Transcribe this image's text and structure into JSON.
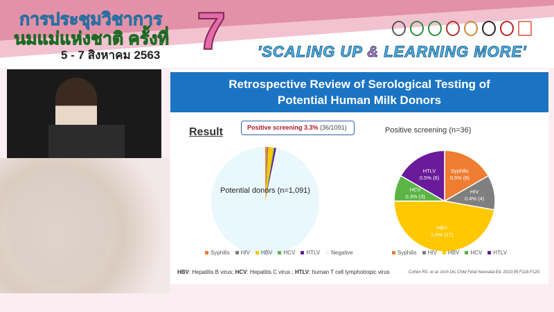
{
  "banner": {
    "title_line1": "การประชุมวิชาการ",
    "title_line2": "นมแม่แห่งชาติ ครั้งที่",
    "dates": "5 - 7 สิงหาคม 2563",
    "number": "7",
    "slogan_a": "'SCALING UP ",
    "slogan_amp": "&",
    "slogan_b": " LEARNING MORE'"
  },
  "slide": {
    "title_line1": "Retrospective Review of Serological Testing of",
    "title_line2": "Potential Human Milk Donors",
    "result_heading": "Result",
    "callout_bold": "Positive screening 3.3%",
    "callout_rest": " (36/1091)",
    "footnote_parts": [
      "HBV",
      ": Hepatitis B virus; ",
      "HCV",
      ": Hepatitis C virus ; ",
      "HTLV",
      ": human T cell lymphotropic virus"
    ],
    "citation": "Cohen RS, et al. Arch Dis Child Fetal Neonatal Ed. 2010;95:F118-F120."
  },
  "chart_data": [
    {
      "type": "pie",
      "title": "",
      "center_label": "Potential donors (n=1,091)",
      "categories": [
        "Syphilis",
        "HIV",
        "HBV",
        "HCV",
        "HTLV",
        "Negative"
      ],
      "values": [
        6,
        4,
        17,
        3,
        6,
        1055
      ],
      "colors": [
        "#ef7d31",
        "#7f7f7f",
        "#ffc800",
        "#5bb446",
        "#6a1a9a",
        "#e9f8fd"
      ],
      "legend": "bottom"
    },
    {
      "type": "pie",
      "title": "Positive screening (n=36)",
      "categories": [
        "Syphilis",
        "HIV",
        "HBV",
        "HCV",
        "HTLV"
      ],
      "values": [
        6,
        4,
        17,
        3,
        6
      ],
      "labels": [
        "0.5% (6)",
        "0.4% (4)",
        "1.6% (17)",
        "0.3% (3)",
        "0.5% (6)"
      ],
      "colors": [
        "#ef7d31",
        "#7f7f7f",
        "#ffc800",
        "#5bb446",
        "#6a1a9a"
      ],
      "legend": "bottom"
    }
  ]
}
